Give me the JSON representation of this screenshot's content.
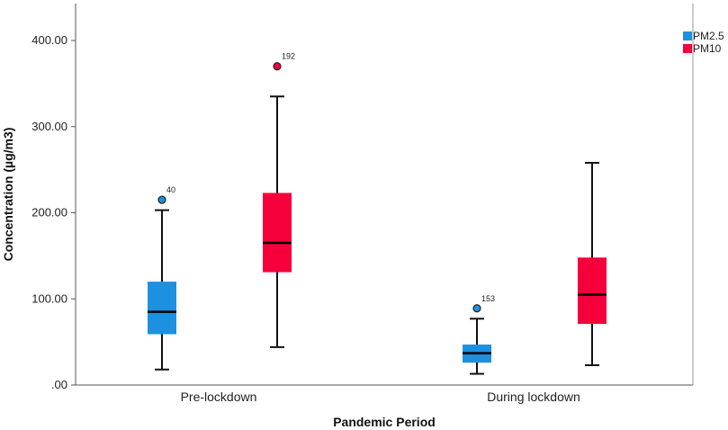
{
  "chart_data": {
    "type": "boxplot",
    "xlabel": "Pandemic Period",
    "ylabel": "Concentration (µg/m3)",
    "ylim": [
      0,
      400
    ],
    "yticks": [
      {
        "value": 0,
        "label": ".00"
      },
      {
        "value": 100,
        "label": "100.00"
      },
      {
        "value": 200,
        "label": "200.00"
      },
      {
        "value": 300,
        "label": "300.00"
      },
      {
        "value": 400,
        "label": "400.00"
      }
    ],
    "categories": [
      "Pre-lockdown",
      "During lockdown"
    ],
    "legend_position": "top-right",
    "series": [
      {
        "name": "PM2.5",
        "color": "#1e90e0",
        "boxes": [
          {
            "min": 18,
            "q1": 59,
            "median": 85,
            "q3": 120,
            "max": 203,
            "outliers": [
              {
                "value": 215,
                "label": "40"
              }
            ]
          },
          {
            "min": 13,
            "q1": 26,
            "median": 37,
            "q3": 47,
            "max": 77,
            "outliers": [
              {
                "value": 89,
                "label": "153"
              }
            ]
          }
        ]
      },
      {
        "name": "PM10",
        "color": "#f5003a",
        "boxes": [
          {
            "min": 44,
            "q1": 131,
            "median": 165,
            "q3": 223,
            "max": 335,
            "outliers": [
              {
                "value": 370,
                "label": "192"
              }
            ]
          },
          {
            "min": 23,
            "q1": 71,
            "median": 105,
            "q3": 148,
            "max": 258,
            "outliers": []
          }
        ]
      }
    ]
  }
}
